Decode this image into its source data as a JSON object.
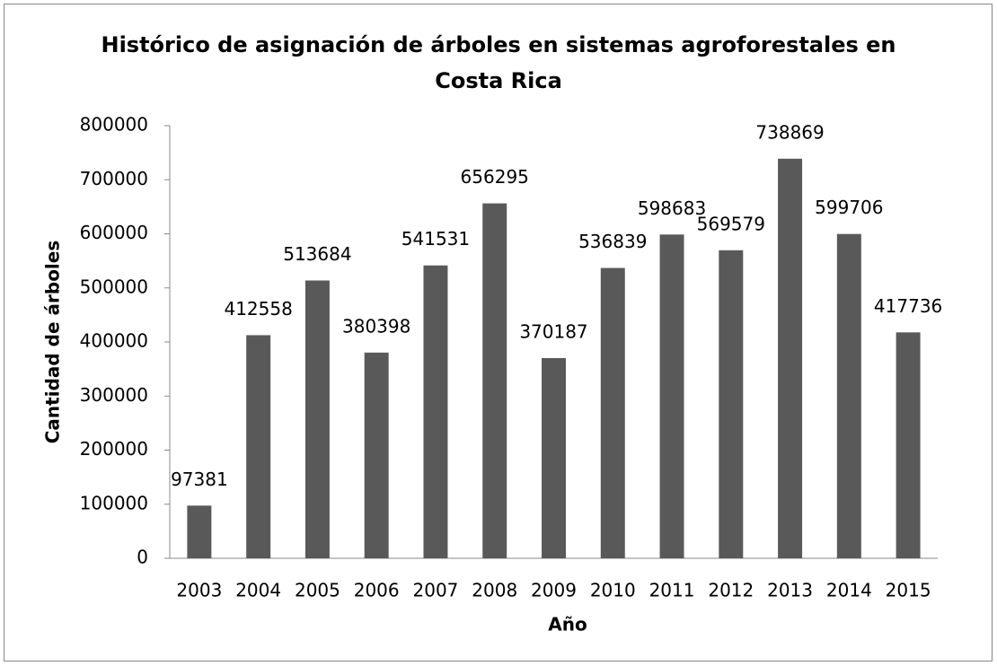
{
  "chart_data": {
    "type": "bar",
    "title": "Histórico de asignación de árboles en sistemas  agroforestales en Costa Rica",
    "x_label": "Año",
    "y_label": "Cantidad de árboles",
    "categories": [
      "2003",
      "2004",
      "2005",
      "2006",
      "2007",
      "2008",
      "2009",
      "2010",
      "2011",
      "2012",
      "2013",
      "2014",
      "2015"
    ],
    "values": [
      97381,
      412558,
      513684,
      380398,
      541531,
      656295,
      370187,
      536839,
      598683,
      569579,
      738869,
      599706,
      417736
    ],
    "color": "#595959",
    "ylim": [
      0,
      800000
    ],
    "yticks": [
      0,
      100000,
      200000,
      300000,
      400000,
      500000,
      600000,
      700000,
      800000
    ],
    "grid": false
  }
}
